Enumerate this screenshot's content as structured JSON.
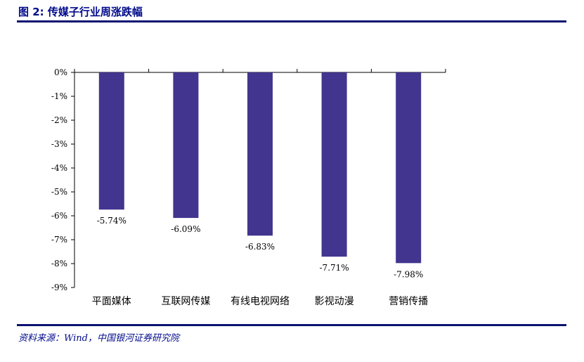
{
  "header": {
    "figure_title": "图 2: 传媒子行业周涨跌幅"
  },
  "footer": {
    "source": "资料来源：Wind，中国银河证券研究院"
  },
  "chart_data": {
    "type": "bar",
    "title": "",
    "xlabel": "",
    "ylabel": "",
    "categories": [
      "平面媒体",
      "互联网传媒",
      "有线电视网络",
      "影视动漫",
      "营销传播"
    ],
    "values": [
      -5.74,
      -6.09,
      -6.83,
      -7.71,
      -7.98
    ],
    "data_labels": [
      "-5.74%",
      "-6.09%",
      "-6.83%",
      "-7.71%",
      "-7.98%"
    ],
    "ylim": [
      -9,
      0
    ],
    "y_ticks": [
      0,
      -1,
      -2,
      -3,
      -4,
      -5,
      -6,
      -7,
      -8,
      -9
    ],
    "y_tick_labels": [
      "0%",
      "-1%",
      "-2%",
      "-3%",
      "-4%",
      "-5%",
      "-6%",
      "-7%",
      "-8%",
      "-9%"
    ],
    "grid": false,
    "legend": "none",
    "bar_color": "#41358f"
  }
}
